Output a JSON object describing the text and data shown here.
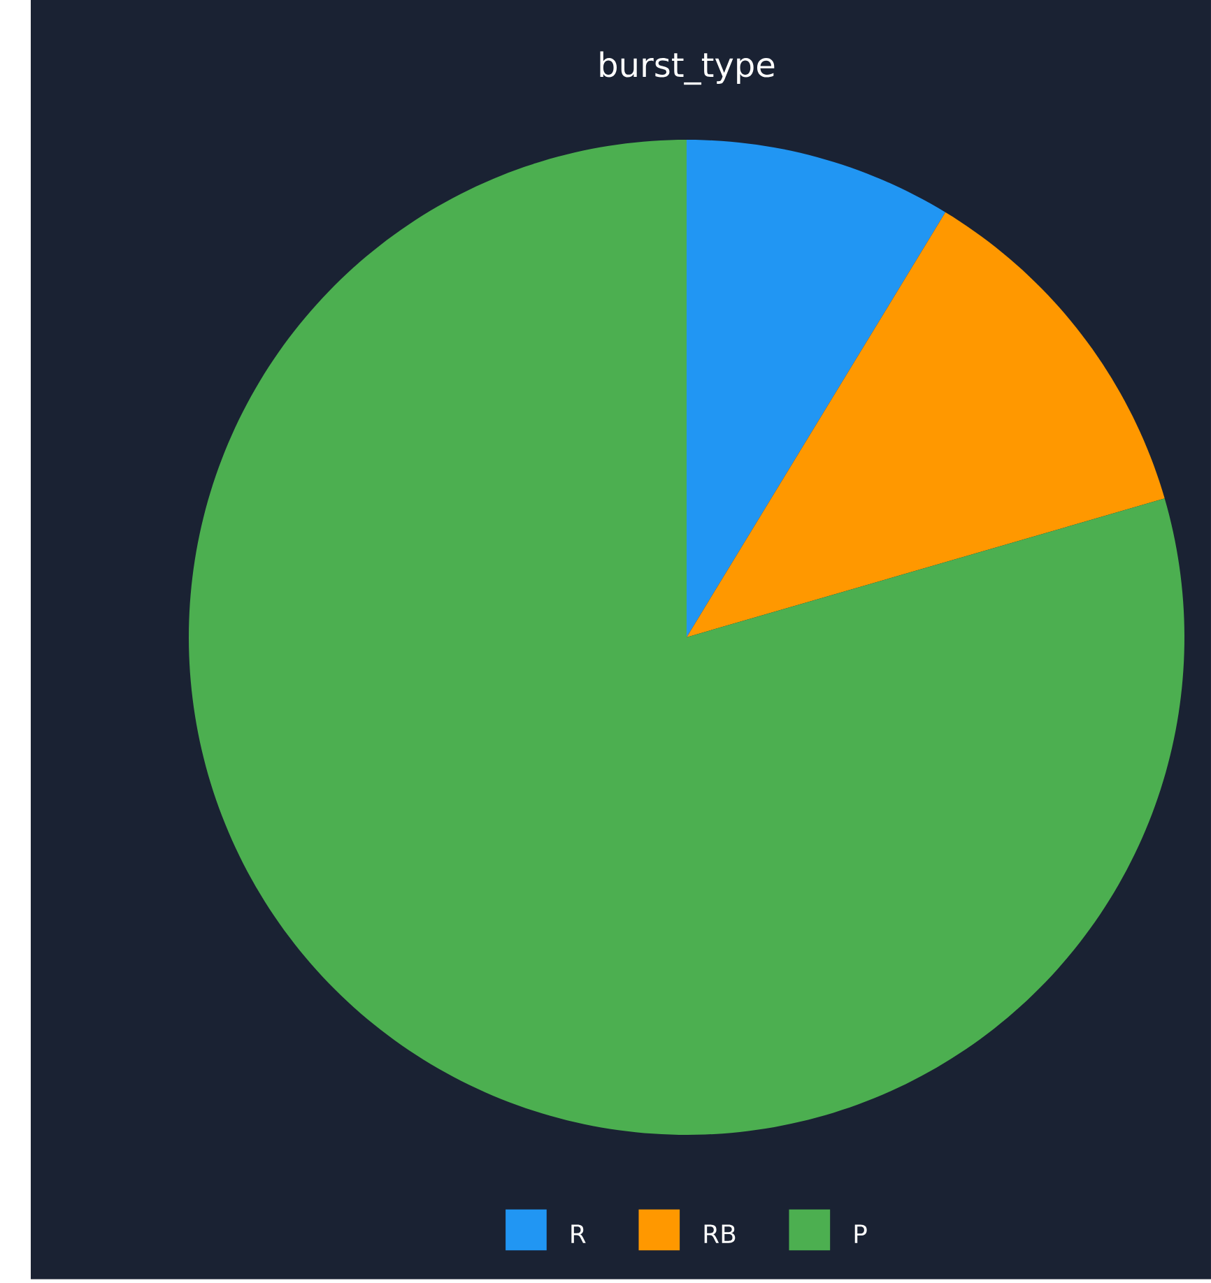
{
  "chart_data": {
    "type": "pie",
    "title": "burst_type",
    "categories": [
      "R",
      "RB",
      "P"
    ],
    "values": [
      8.7,
      11.8,
      79.5
    ],
    "colors": [
      "#2196f3",
      "#ff9800",
      "#4caf50"
    ],
    "legend": "bottom"
  }
}
